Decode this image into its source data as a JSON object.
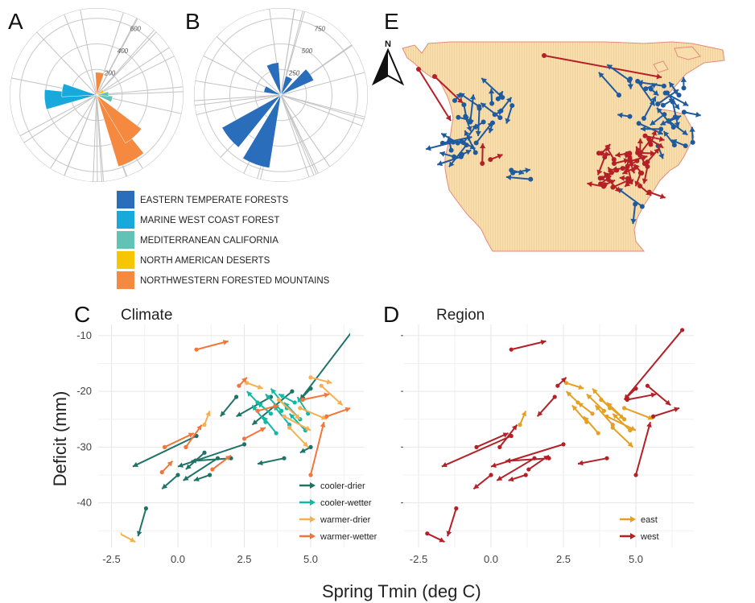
{
  "panels": {
    "A": "A",
    "B": "B",
    "C": "C",
    "D": "D",
    "E": "E",
    "c_title": "Climate",
    "d_title": "Region"
  },
  "axes": {
    "xlabel": "Spring Tmin (deg C)",
    "ylabel": "Deficit (mm)",
    "x_ticks": [
      "-2.5",
      "0.0",
      "2.5",
      "5.0"
    ],
    "y_ticks": [
      "-10",
      "-20",
      "-30",
      "-40"
    ]
  },
  "ecoregion_legend": [
    {
      "label": "EASTERN TEMPERATE FORESTS",
      "color": "#2a6ebb"
    },
    {
      "label": "MARINE WEST COAST FOREST",
      "color": "#17a9dc"
    },
    {
      "label": "MEDITERRANEAN CALIFORNIA",
      "color": "#63c2b6"
    },
    {
      "label": "NORTH AMERICAN DESERTS",
      "color": "#f6c700"
    },
    {
      "label": "NORTHWESTERN FORESTED MOUNTAINS",
      "color": "#f5893f"
    }
  ],
  "north_label": "N",
  "chart_data": [
    {
      "panel": "A",
      "type": "rose",
      "ring_labels": [
        "200",
        "400",
        "600"
      ],
      "slices": [
        {
          "group": "NORTHWESTERN FORESTED MOUNTAINS",
          "angle": 8,
          "r": 170
        },
        {
          "group": "NORTHWESTERN FORESTED MOUNTAINS",
          "angle": 152,
          "r": 560
        },
        {
          "group": "NORTHWESTERN FORESTED MOUNTAINS",
          "angle": 138,
          "r": 420
        },
        {
          "group": "NORTHWESTERN FORESTED MOUNTAINS",
          "angle": 268,
          "r": 140
        },
        {
          "group": "MARINE WEST COAST FOREST",
          "angle": 265,
          "r": 390
        },
        {
          "group": "MARINE WEST COAST FOREST",
          "angle": 278,
          "r": 260
        },
        {
          "group": "MEDITERRANEAN CALIFORNIA",
          "angle": 105,
          "r": 120
        },
        {
          "group": "MEDITERRANEAN CALIFORNIA",
          "angle": 85,
          "r": 90
        },
        {
          "group": "NORTH AMERICAN DESERTS",
          "angle": 60,
          "r": 60
        }
      ]
    },
    {
      "panel": "B",
      "type": "rose",
      "ring_labels": [
        "250",
        "500",
        "750"
      ],
      "slices": [
        {
          "group": "EASTERN TEMPERATE FORESTS",
          "angle": 200,
          "r": 680
        },
        {
          "group": "EASTERN TEMPERATE FORESTS",
          "angle": 230,
          "r": 620
        },
        {
          "group": "EASTERN TEMPERATE FORESTS",
          "angle": 345,
          "r": 300
        },
        {
          "group": "EASTERN TEMPERATE FORESTS",
          "angle": 55,
          "r": 330
        },
        {
          "group": "EASTERN TEMPERATE FORESTS",
          "angle": 25,
          "r": 180
        },
        {
          "group": "EASTERN TEMPERATE FORESTS",
          "angle": 290,
          "r": 160
        }
      ]
    },
    {
      "panel": "C",
      "type": "scatter",
      "title": "Climate",
      "xlabel": "Spring Tmin (deg C)",
      "ylabel": "Deficit (mm)",
      "xlim": [
        -3,
        7
      ],
      "ylim": [
        -48,
        -8
      ],
      "legend": [
        "cooler-drier",
        "cooler-wetter",
        "warmer-drier",
        "warmer-wetter"
      ],
      "series": [
        {
          "name": "cooler-drier",
          "color": "#1e7366",
          "arrows": [
            [
              6.6,
              -9.0,
              4.6,
              -21.5
            ],
            [
              -1.2,
              -41.0,
              -1.5,
              -46.0
            ],
            [
              0.7,
              -28.0,
              -1.7,
              -33.5
            ],
            [
              2.5,
              -29.5,
              0.0,
              -33.5
            ],
            [
              1.5,
              -32.0,
              0.2,
              -36.0
            ],
            [
              0.0,
              -35.0,
              -0.6,
              -37.5
            ],
            [
              2.2,
              -21.0,
              1.6,
              -24.5
            ],
            [
              4.0,
              -32.0,
              3.0,
              -33.0
            ],
            [
              3.5,
              -21.0,
              2.2,
              -24.5
            ],
            [
              4.3,
              -20.0,
              2.8,
              -26.0
            ],
            [
              1.0,
              -31.0,
              0.3,
              -34.0
            ],
            [
              5.0,
              -30.0,
              4.6,
              -31.0
            ],
            [
              5.0,
              -19.5,
              4.6,
              -21.5
            ],
            [
              2.0,
              -32.0,
              0.5,
              -32.5
            ],
            [
              1.2,
              -35.0,
              0.6,
              -36.0
            ]
          ]
        },
        {
          "name": "cooler-wetter",
          "color": "#12b8a6",
          "arrows": [
            [
              3.5,
              -24.0,
              3.0,
              -22.0
            ],
            [
              4.2,
              -26.0,
              3.6,
              -22.5
            ],
            [
              3.9,
              -23.5,
              3.3,
              -20.5
            ],
            [
              4.6,
              -25.0,
              4.0,
              -22.0
            ],
            [
              3.0,
              -22.0,
              2.6,
              -20.0
            ],
            [
              4.8,
              -27.0,
              4.2,
              -24.0
            ],
            [
              3.7,
              -27.5,
              3.2,
              -24.5
            ],
            [
              4.1,
              -23.0,
              3.5,
              -19.5
            ],
            [
              4.4,
              -22.0,
              3.8,
              -20.5
            ],
            [
              3.3,
              -25.5,
              2.8,
              -22.5
            ],
            [
              4.9,
              -24.0,
              4.5,
              -21.0
            ]
          ]
        },
        {
          "name": "warmer-drier",
          "color": "#f6b04f",
          "arrows": [
            [
              -2.2,
              -45.5,
              -1.6,
              -47.0
            ],
            [
              1.0,
              -26.0,
              1.2,
              -23.5
            ],
            [
              4.0,
              -24.5,
              5.0,
              -27.0
            ],
            [
              4.6,
              -23.0,
              5.6,
              -25.0
            ],
            [
              2.6,
              -18.5,
              3.2,
              -19.5
            ],
            [
              4.2,
              -26.5,
              4.9,
              -30.0
            ],
            [
              5.4,
              -19.0,
              6.2,
              -22.5
            ],
            [
              3.8,
              -21.5,
              4.6,
              -25.0
            ],
            [
              5.0,
              -17.5,
              5.8,
              -18.5
            ]
          ]
        },
        {
          "name": "warmer-wetter",
          "color": "#f2753a",
          "arrows": [
            [
              0.7,
              -12.5,
              1.9,
              -11.0
            ],
            [
              -0.5,
              -30.0,
              0.6,
              -27.5
            ],
            [
              0.3,
              -30.0,
              0.9,
              -26.0
            ],
            [
              1.3,
              -34.0,
              2.0,
              -31.5
            ],
            [
              5.0,
              -35.0,
              5.5,
              -25.5
            ],
            [
              5.6,
              -24.5,
              6.5,
              -23.0
            ],
            [
              2.3,
              -19.0,
              2.6,
              -17.5
            ],
            [
              4.7,
              -21.5,
              5.7,
              -20.5
            ],
            [
              3.0,
              -23.5,
              3.8,
              -22.5
            ],
            [
              -0.6,
              -34.5,
              -0.2,
              -32.5
            ],
            [
              2.5,
              -28.5,
              3.3,
              -26.5
            ]
          ]
        }
      ]
    },
    {
      "panel": "D",
      "type": "scatter",
      "title": "Region",
      "xlabel": "Spring Tmin (deg C)",
      "ylabel": "Deficit (mm)",
      "xlim": [
        -3,
        7
      ],
      "ylim": [
        -48,
        -8
      ],
      "legend": [
        "east",
        "west"
      ],
      "series": [
        {
          "name": "east",
          "color": "#e6a01f",
          "arrows": [
            [
              3.5,
              -24.0,
              3.0,
              -22.0
            ],
            [
              4.2,
              -26.0,
              3.6,
              -22.5
            ],
            [
              3.9,
              -23.5,
              3.3,
              -20.5
            ],
            [
              4.6,
              -25.0,
              4.0,
              -22.0
            ],
            [
              3.0,
              -22.0,
              2.6,
              -20.0
            ],
            [
              4.8,
              -27.0,
              4.2,
              -24.0
            ],
            [
              3.7,
              -27.5,
              3.2,
              -24.5
            ],
            [
              4.1,
              -23.0,
              3.5,
              -19.5
            ],
            [
              1.0,
              -26.0,
              1.2,
              -23.5
            ],
            [
              4.0,
              -24.5,
              5.0,
              -27.0
            ],
            [
              4.6,
              -23.0,
              5.6,
              -25.0
            ],
            [
              2.6,
              -18.5,
              3.2,
              -19.5
            ],
            [
              4.2,
              -26.5,
              4.9,
              -30.0
            ],
            [
              3.8,
              -21.5,
              4.6,
              -25.0
            ],
            [
              3.3,
              -25.5,
              2.8,
              -22.5
            ]
          ]
        },
        {
          "name": "west",
          "color": "#b52027",
          "arrows": [
            [
              6.6,
              -9.0,
              4.6,
              -21.5
            ],
            [
              -2.2,
              -45.5,
              -1.6,
              -47.0
            ],
            [
              -1.2,
              -41.0,
              -1.5,
              -46.0
            ],
            [
              0.7,
              -28.0,
              -1.7,
              -33.5
            ],
            [
              2.5,
              -29.5,
              0.0,
              -33.5
            ],
            [
              1.5,
              -32.0,
              0.2,
              -36.0
            ],
            [
              0.0,
              -35.0,
              -0.6,
              -37.5
            ],
            [
              2.0,
              -32.0,
              0.5,
              -32.5
            ],
            [
              4.0,
              -32.0,
              3.0,
              -33.0
            ],
            [
              0.7,
              -12.5,
              1.9,
              -11.0
            ],
            [
              -0.5,
              -30.0,
              0.6,
              -27.5
            ],
            [
              0.3,
              -30.0,
              0.9,
              -26.0
            ],
            [
              1.3,
              -34.0,
              2.0,
              -31.5
            ],
            [
              5.0,
              -35.0,
              5.5,
              -25.5
            ],
            [
              5.6,
              -24.5,
              6.5,
              -23.0
            ],
            [
              2.3,
              -19.0,
              2.6,
              -17.5
            ],
            [
              4.7,
              -21.5,
              5.7,
              -20.5
            ],
            [
              5.4,
              -19.0,
              6.2,
              -22.5
            ],
            [
              5.0,
              -19.5,
              4.6,
              -21.5
            ],
            [
              1.2,
              -35.0,
              0.6,
              -36.0
            ],
            [
              2.2,
              -21.0,
              1.6,
              -24.5
            ]
          ]
        }
      ]
    },
    {
      "panel": "E",
      "type": "map",
      "legend": [
        "east",
        "west"
      ]
    }
  ]
}
